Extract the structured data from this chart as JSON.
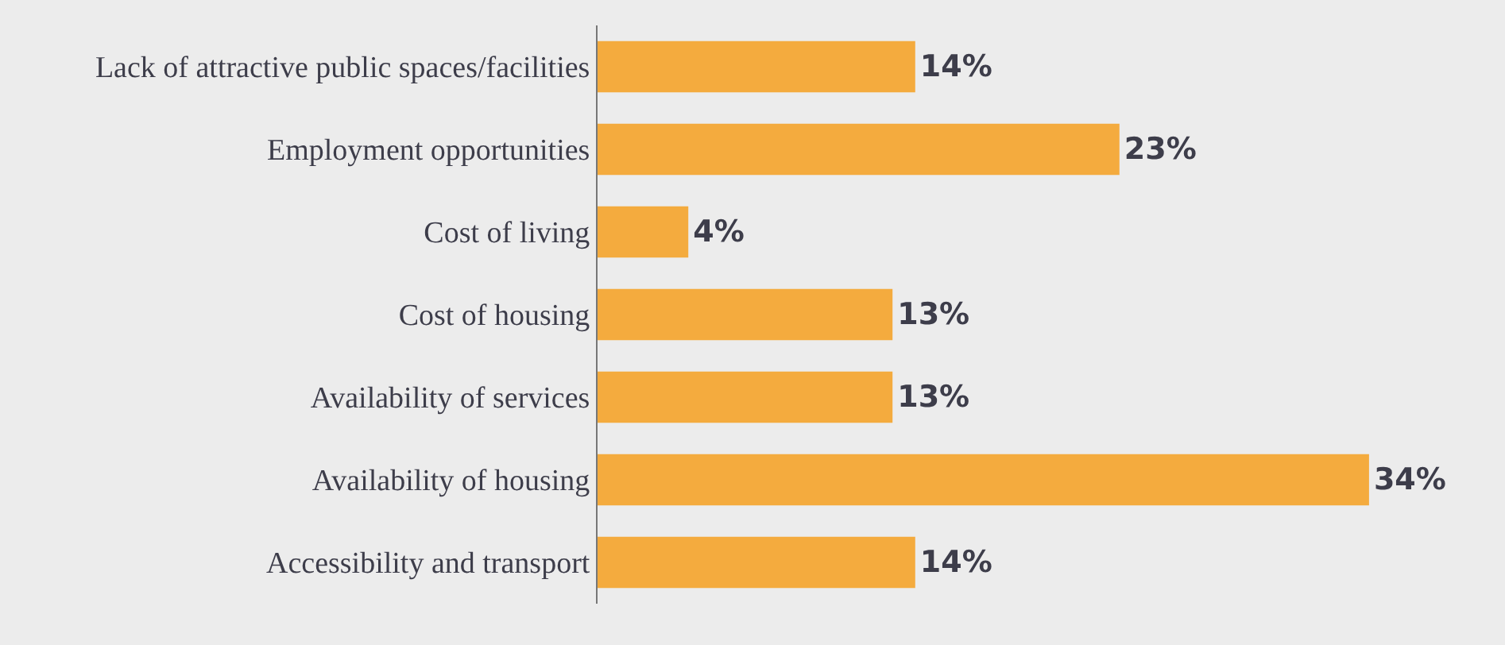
{
  "chart_data": {
    "type": "bar",
    "orientation": "horizontal",
    "categories": [
      "Lack of attractive public spaces/facilities",
      "Employment opportunities",
      "Cost of living",
      "Cost of housing",
      "Availability of services",
      "Availability of housing",
      "Accessibility and transport"
    ],
    "values": [
      14,
      23,
      4,
      13,
      13,
      34,
      14
    ],
    "value_labels": [
      "14%",
      "23%",
      "4%",
      "13%",
      "13%",
      "34%",
      "14%"
    ],
    "color": "#f4ab3e",
    "grid": false,
    "legend": false
  }
}
